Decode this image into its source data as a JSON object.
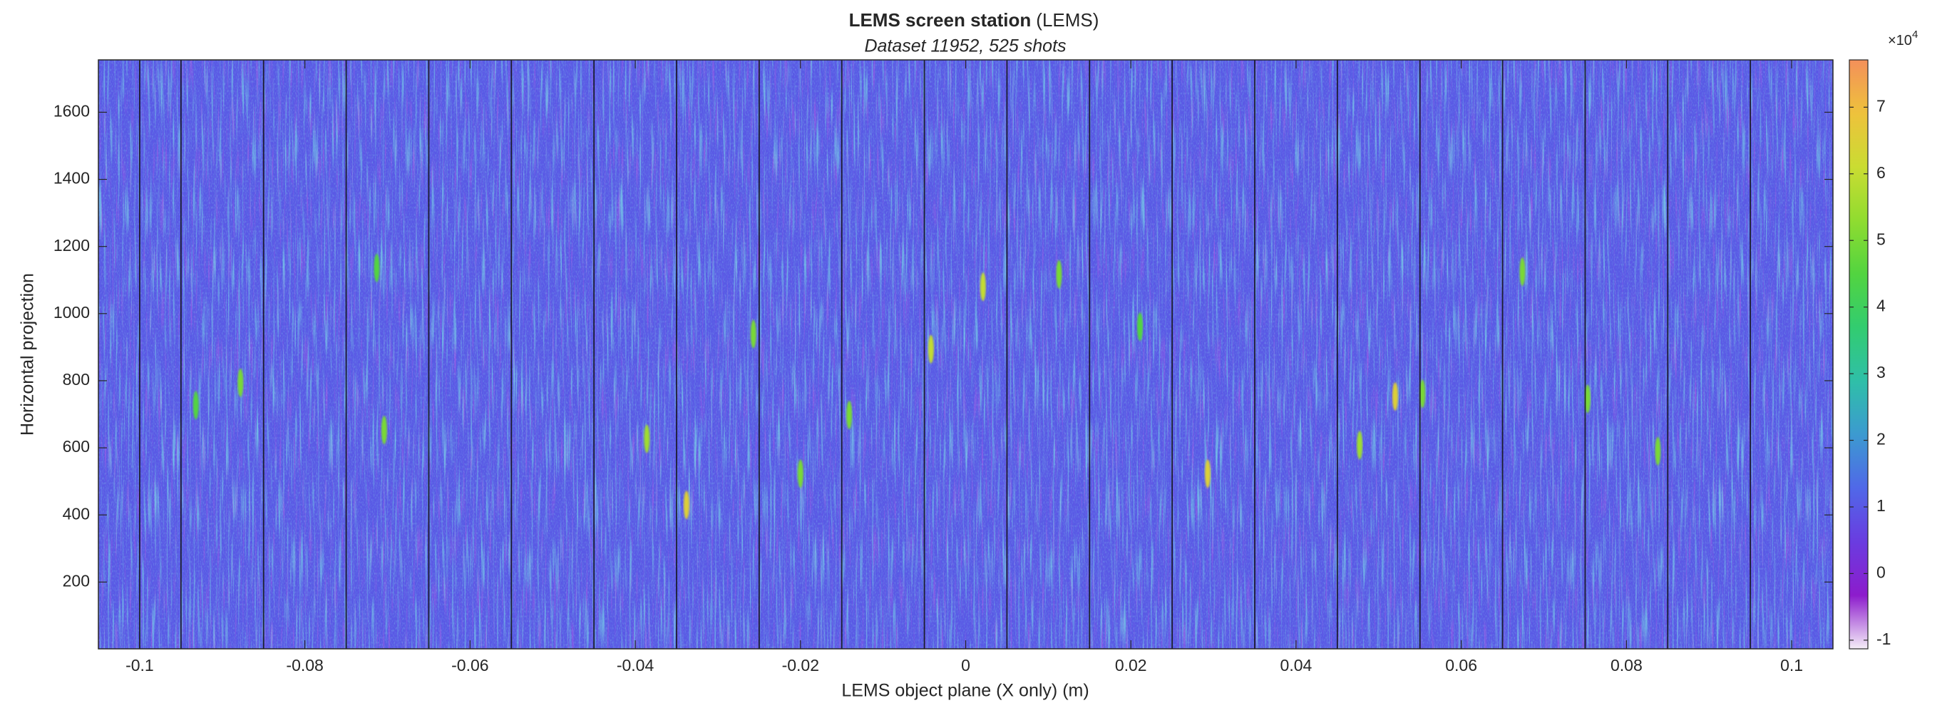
{
  "chart_data": {
    "type": "heatmap",
    "title": "LEMS screen station",
    "title_suffix": "(LEMS)",
    "subtitle": "Dataset 11952, 525 shots",
    "x_label": "LEMS object plane (X only) (m)",
    "y_label": "Horizontal projection",
    "xlim": [
      -0.105,
      0.105
    ],
    "ylim": [
      1,
      1756
    ],
    "xticks": [
      -0.1,
      -0.08,
      -0.06,
      -0.04,
      -0.02,
      0,
      0.02,
      0.04,
      0.06,
      0.08,
      0.1
    ],
    "yticks": [
      200,
      400,
      600,
      800,
      1000,
      1200,
      1400,
      1600
    ],
    "separators": [
      -0.1,
      -0.095,
      -0.085,
      -0.075,
      -0.065,
      -0.055,
      -0.045,
      -0.035,
      -0.025,
      -0.015,
      -0.005,
      0.005,
      0.015,
      0.025,
      0.035,
      0.045,
      0.055,
      0.065,
      0.075,
      0.085,
      0.095
    ],
    "hotspots": {
      "x": [
        0.0021,
        -0.0338,
        -0.0042,
        0.0293,
        0.0477,
        0.052,
        -0.0386,
        -0.0713,
        -0.0878,
        0.0753,
        0.0113,
        0.0211,
        -0.02,
        0.0838,
        -0.0932,
        0.0553,
        0.0674,
        -0.0141,
        -0.0704,
        -0.0257
      ],
      "y": [
        1080,
        430,
        894,
        523,
        608,
        753,
        627,
        1136,
        794,
        746,
        1117,
        961,
        523,
        590,
        727,
        761,
        1125,
        698,
        653,
        939
      ],
      "values": [
        60000,
        65000,
        60000,
        65000,
        55000,
        65000,
        55000,
        45000,
        50000,
        50000,
        50000,
        45000,
        50000,
        50000,
        45000,
        50000,
        50000,
        50000,
        50000,
        50000
      ]
    },
    "background_value": 10000,
    "clim": [
      -11300,
      77100
    ],
    "colormap": [
      "#f5eef8",
      "#8c1ccc",
      "#6a3ce0",
      "#5068e8",
      "#3c9ad0",
      "#2fbfa8",
      "#32cc70",
      "#52d440",
      "#90dc30",
      "#cadc32",
      "#eec23c",
      "#f4905a"
    ],
    "cticks": [
      {
        "value": -10000,
        "label": "-1"
      },
      {
        "value": 0,
        "label": "0"
      },
      {
        "value": 10000,
        "label": "1"
      },
      {
        "value": 20000,
        "label": "2"
      },
      {
        "value": 30000,
        "label": "3"
      },
      {
        "value": 40000,
        "label": "4"
      },
      {
        "value": 50000,
        "label": "5"
      },
      {
        "value": 60000,
        "label": "6"
      },
      {
        "value": 70000,
        "label": "7"
      }
    ],
    "colorbar_exponent_base": "×10",
    "colorbar_exponent": "4"
  }
}
